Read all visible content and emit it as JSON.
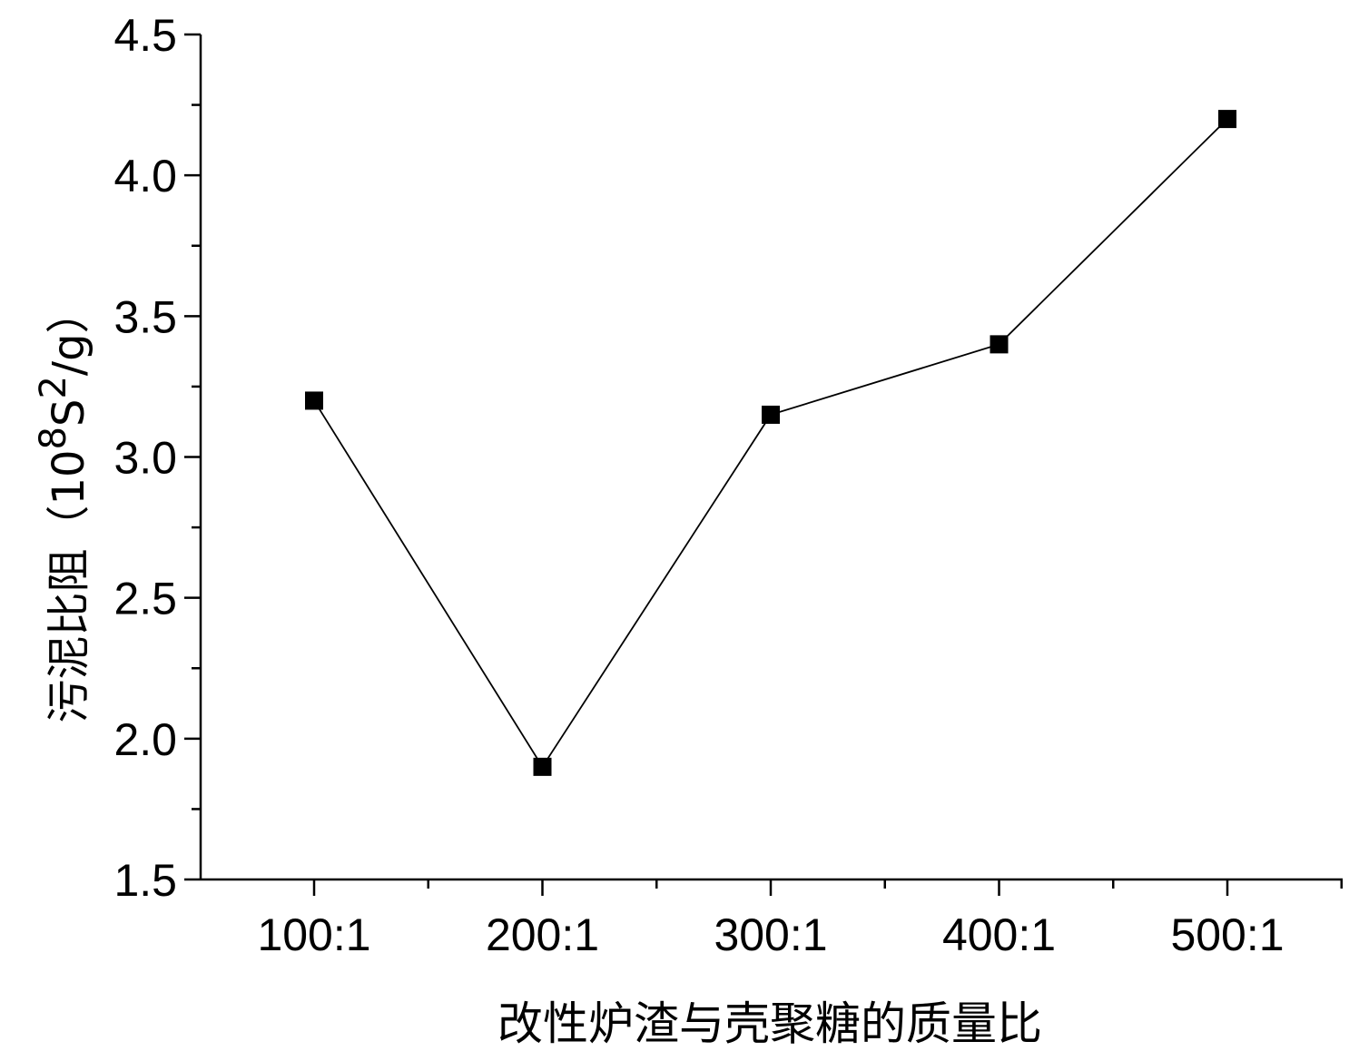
{
  "chart_data": {
    "type": "line",
    "title": "",
    "xlabel": "改性炉渣与壳聚糖的质量比",
    "ylabel": {
      "prefix": "污泥比阻（10",
      "exp1": "8",
      "mid": "S",
      "exp2": "2",
      "suffix": "/g）"
    },
    "categories": [
      "100:1",
      "200:1",
      "300:1",
      "400:1",
      "500:1"
    ],
    "series": [
      {
        "values": [
          3.2,
          1.9,
          3.15,
          3.4,
          4.2
        ]
      }
    ],
    "ylim": [
      1.5,
      4.5
    ],
    "yticks": [
      "1.5",
      "2.0",
      "2.5",
      "3.0",
      "3.5",
      "4.0",
      "4.5"
    ],
    "marker": "square",
    "line_color": "#000000",
    "grid": false,
    "legend": "none"
  }
}
